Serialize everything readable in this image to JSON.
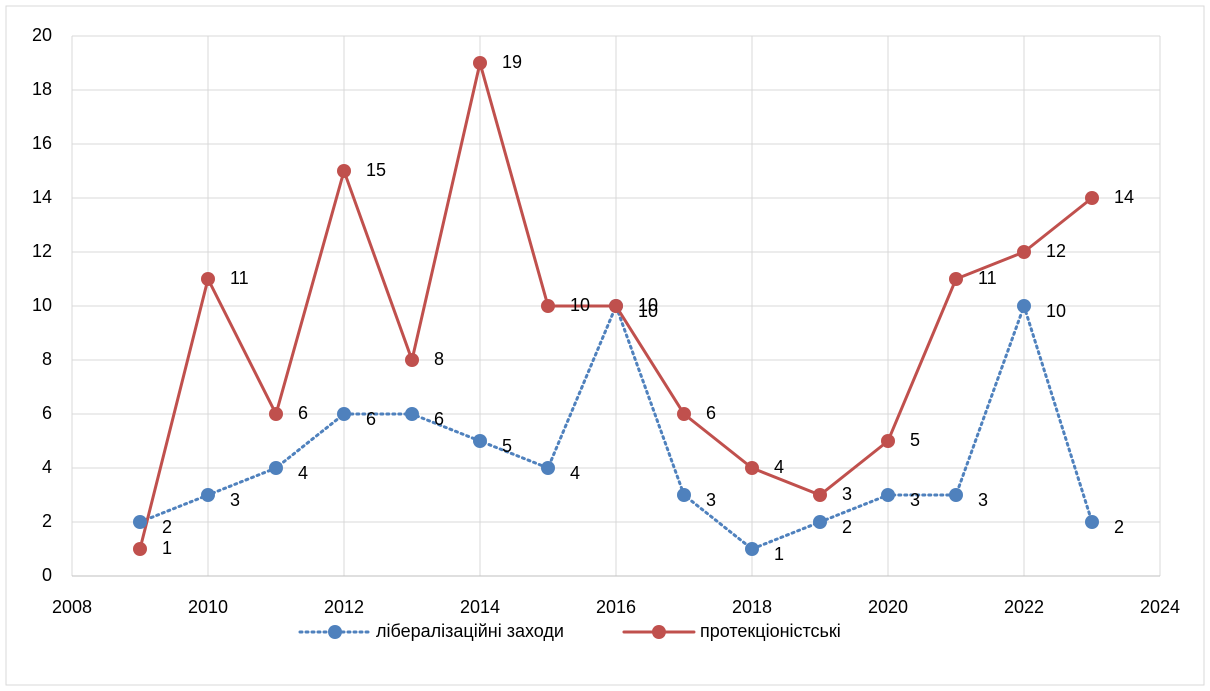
{
  "chart_data": {
    "type": "line",
    "x": [
      2009,
      2010,
      2011,
      2012,
      2013,
      2014,
      2015,
      2016,
      2017,
      2018,
      2019,
      2020,
      2021,
      2022,
      2023
    ],
    "series": [
      {
        "name": "лібералізаційні заходи",
        "color": "#4f81bd",
        "dash": "dotted",
        "values": [
          2,
          3,
          4,
          6,
          6,
          5,
          4,
          10,
          3,
          1,
          2,
          3,
          3,
          10,
          2
        ]
      },
      {
        "name": "протекціоністські",
        "color": "#c0504d",
        "dash": "solid",
        "values": [
          1,
          11,
          6,
          15,
          8,
          19,
          10,
          10,
          6,
          4,
          3,
          5,
          11,
          12,
          14
        ]
      }
    ],
    "xlim": [
      2008,
      2024
    ],
    "xticks": [
      2008,
      2010,
      2012,
      2014,
      2016,
      2018,
      2020,
      2022,
      2024
    ],
    "ylim": [
      0,
      20
    ],
    "yticks": [
      0,
      2,
      4,
      6,
      8,
      10,
      12,
      14,
      16,
      18,
      20
    ],
    "grid": true,
    "legend": "bottom"
  }
}
